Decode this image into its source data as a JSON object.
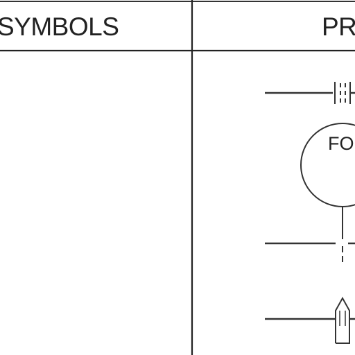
{
  "table": {
    "headers": {
      "symbols": "SYMBOLS",
      "process_partial": "PR"
    }
  },
  "symbols": {
    "bubble_text_partial": "FO"
  },
  "colors": {
    "ink": "#222222",
    "paper": "#ffffff"
  }
}
